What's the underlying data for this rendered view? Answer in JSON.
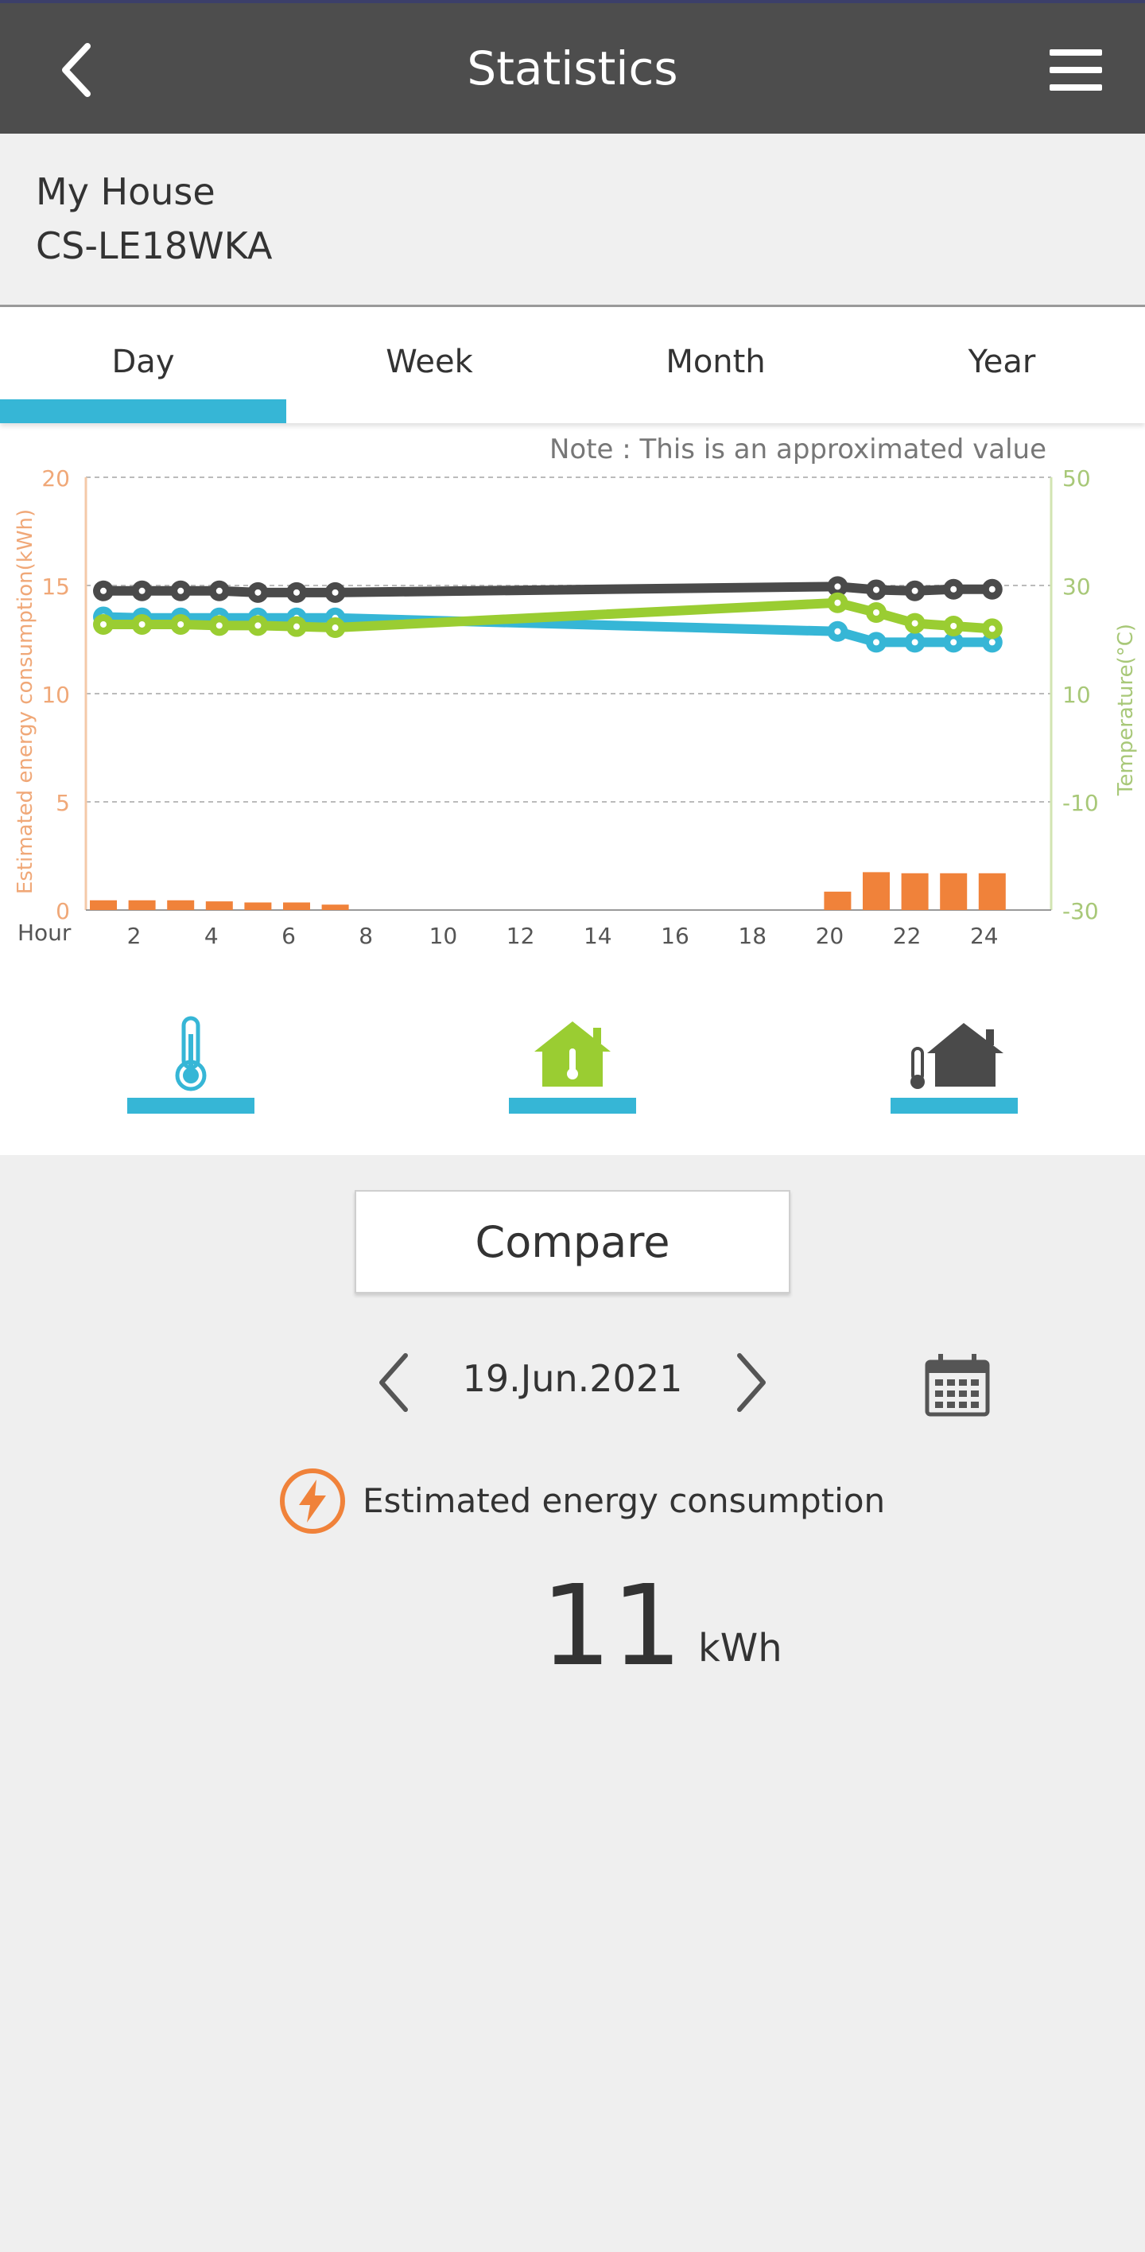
{
  "header": {
    "title": "Statistics"
  },
  "device": {
    "location": "My House",
    "model": "CS-LE18WKA"
  },
  "tabs": [
    {
      "label": "Day",
      "active": true
    },
    {
      "label": "Week",
      "active": false
    },
    {
      "label": "Month",
      "active": false
    },
    {
      "label": "Year",
      "active": false
    }
  ],
  "chart_note": "Note : This is an approximated value",
  "chart_data": {
    "type": "bar+line",
    "xlabel": "Hour",
    "ylabel_left": "Estimated energy consumption(kWh)",
    "ylabel_right": "Temperature(°C)",
    "ylim_left": [
      0,
      20
    ],
    "ylim_right": [
      -30,
      50
    ],
    "x_ticks": [
      2,
      4,
      6,
      8,
      10,
      12,
      14,
      16,
      18,
      20,
      22,
      24
    ],
    "y_left_ticks": [
      0,
      5,
      10,
      15,
      20
    ],
    "y_right_ticks": [
      -30,
      -10,
      10,
      30,
      50
    ],
    "grid": true,
    "colors": {
      "energy": "#f0823a",
      "outdoor": "#36b6d6",
      "indoor": "#9acd32",
      "setpoint": "#4a4a4a"
    },
    "energy_bars": {
      "hours": [
        1,
        2,
        3,
        4,
        5,
        6,
        7,
        20,
        21,
        22,
        23,
        24
      ],
      "values": [
        0.45,
        0.45,
        0.45,
        0.4,
        0.35,
        0.35,
        0.25,
        0.85,
        1.75,
        1.7,
        1.7,
        1.7
      ]
    },
    "series": [
      {
        "key": "setpoint",
        "hours": [
          1,
          2,
          3,
          4,
          5,
          6,
          7,
          20,
          21,
          22,
          23,
          24
        ],
        "values": [
          29,
          29,
          29,
          29,
          28.7,
          28.7,
          28.7,
          29.8,
          29.2,
          29,
          29.3,
          29.3
        ]
      },
      {
        "key": "outdoor",
        "hours": [
          1,
          2,
          3,
          4,
          5,
          6,
          7,
          20,
          21,
          22,
          23,
          24
        ],
        "values": [
          24.2,
          24,
          24,
          24,
          24,
          24,
          24,
          21.5,
          19.5,
          19.5,
          19.5,
          19.5
        ]
      },
      {
        "key": "indoor",
        "hours": [
          1,
          2,
          3,
          4,
          5,
          6,
          7,
          20,
          21,
          22,
          23,
          24
        ],
        "values": [
          22.8,
          22.8,
          22.8,
          22.6,
          22.6,
          22.4,
          22.2,
          26.8,
          25,
          23,
          22.5,
          22
        ]
      }
    ]
  },
  "legend": [
    {
      "icon": "outdoor-thermometer-icon",
      "color": "#36b6d6"
    },
    {
      "icon": "indoor-house-icon",
      "color": "#9acd32"
    },
    {
      "icon": "setpoint-house-icon",
      "color": "#4a4a4a"
    }
  ],
  "compare_label": "Compare",
  "date": "19.Jun.2021",
  "energy_label": "Estimated energy consumption",
  "energy_value": "11",
  "energy_unit": "kWh"
}
